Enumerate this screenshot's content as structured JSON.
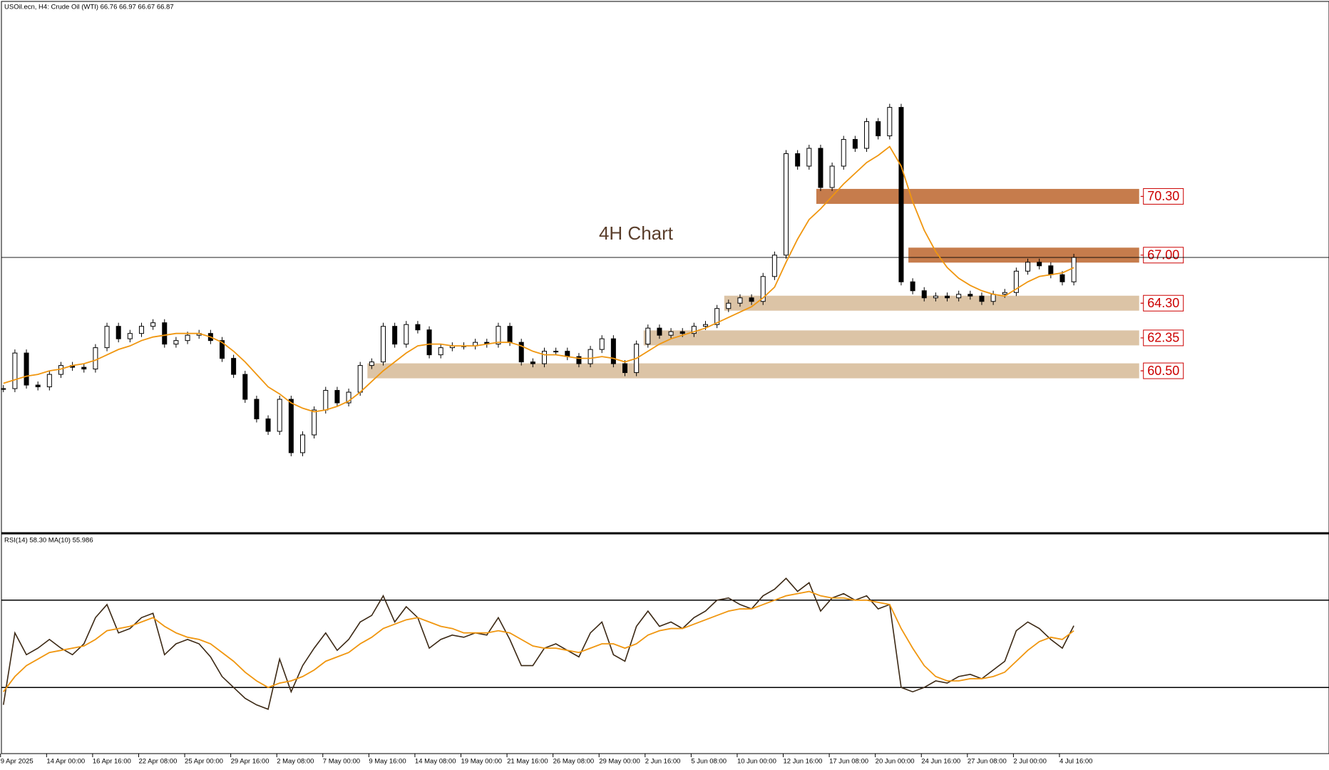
{
  "chart_data": [
    {
      "type": "candlestick",
      "title": "USOil.ecn, H4:  Crude Oil (WTI)  66.76 66.97 66.67 66.87",
      "annotation": "4H Chart",
      "ylim": [
        51.43,
        81.19
      ],
      "color_up": "#ffffff",
      "color_down": "#000000",
      "values": [
        59.5,
        61.5,
        59.7,
        59.6,
        60.3,
        60.8,
        60.7,
        60.6,
        61.8,
        63.0,
        62.3,
        62.6,
        63.0,
        63.2,
        62.0,
        62.2,
        62.5,
        62.6,
        62.2,
        61.2,
        60.3,
        58.9,
        57.8,
        57.1,
        58.9,
        55.9,
        56.9,
        58.3,
        59.4,
        58.7,
        59.3,
        60.8,
        61.0,
        63.0,
        62.0,
        63.1,
        62.8,
        61.4,
        61.8,
        61.9,
        61.9,
        62.1,
        62.0,
        63.0,
        62.1,
        61.0,
        60.9,
        61.6,
        61.6,
        61.3,
        60.9,
        61.7,
        62.3,
        60.9,
        60.4,
        62.0,
        62.9,
        62.5,
        62.7,
        62.6,
        63.0,
        63.1,
        64.0,
        64.3,
        64.6,
        64.4,
        65.8,
        67.0,
        72.7,
        72.0,
        73.0,
        70.8,
        72.0,
        73.5,
        73.0,
        74.5,
        73.7,
        75.3,
        65.5,
        65.0,
        64.6,
        64.7,
        64.6,
        64.8,
        64.7,
        64.4,
        64.8,
        64.9,
        66.1,
        66.6,
        66.4,
        65.9,
        65.5,
        66.87
      ],
      "moving_average": {
        "color": "#f0960f",
        "values": [
          59.8,
          60.0,
          60.2,
          60.3,
          60.5,
          60.6,
          60.8,
          60.9,
          61.1,
          61.4,
          61.7,
          61.9,
          62.2,
          62.4,
          62.5,
          62.6,
          62.6,
          62.6,
          62.4,
          62.1,
          61.6,
          61.0,
          60.3,
          59.6,
          59.2,
          58.7,
          58.4,
          58.2,
          58.3,
          58.5,
          58.8,
          59.3,
          59.9,
          60.5,
          61.0,
          61.5,
          61.9,
          62.0,
          62.0,
          61.9,
          61.9,
          61.9,
          62.0,
          62.1,
          62.1,
          61.9,
          61.6,
          61.4,
          61.4,
          61.3,
          61.2,
          61.2,
          61.3,
          61.2,
          61.0,
          61.2,
          61.6,
          62.0,
          62.3,
          62.5,
          62.7,
          62.9,
          63.2,
          63.5,
          63.8,
          64.1,
          64.6,
          65.2,
          66.6,
          67.9,
          69.0,
          69.6,
          70.3,
          71.0,
          71.6,
          72.2,
          72.6,
          73.1,
          72.0,
          70.0,
          68.4,
          67.2,
          66.3,
          65.7,
          65.3,
          65.0,
          64.8,
          64.7,
          65.1,
          65.5,
          65.8,
          65.9,
          66.0,
          66.3
        ]
      },
      "levels": [
        {
          "value": 70.3,
          "label": "70.30",
          "from": 71,
          "color": "#c67c4c"
        },
        {
          "value": 67.0,
          "label": "67.00",
          "from": 79,
          "color": "#c67c4c"
        },
        {
          "value": 64.3,
          "label": "64.30",
          "from": 63,
          "color": "#dcc4a6"
        },
        {
          "value": 62.35,
          "label": "62.35",
          "from": 56,
          "color": "#dcc4a6"
        },
        {
          "value": 60.5,
          "label": "60.50",
          "from": 32,
          "color": "#dcc4a6"
        }
      ],
      "label_color": "#cc0000"
    },
    {
      "type": "line",
      "title": "RSI(14) 58.30 MA(10) 55.986",
      "ylim": [
        0,
        100
      ],
      "levels": [
        30,
        70
      ],
      "categories": [
        "9 Apr 2025",
        null,
        null,
        null,
        "14 Apr 00:00",
        null,
        null,
        null,
        "16 Apr 16:00",
        null,
        null,
        null,
        "22 Apr 08:00",
        null,
        null,
        null,
        "25 Apr 00:00",
        null,
        null,
        null,
        "29 Apr 16:00",
        null,
        null,
        null,
        "2 May 08:00",
        null,
        null,
        null,
        "7 May 00:00",
        null,
        null,
        null,
        "9 May 16:00",
        null,
        null,
        null,
        "14 May 08:00",
        null,
        null,
        null,
        "19 May 00:00",
        null,
        null,
        null,
        "21 May 16:00",
        null,
        null,
        null,
        "26 May 08:00",
        null,
        null,
        null,
        "29 May 00:00",
        null,
        null,
        null,
        "2 Jun 16:00",
        null,
        null,
        null,
        "5 Jun 08:00",
        null,
        null,
        null,
        "10 Jun 00:00",
        null,
        null,
        null,
        "12 Jun 16:00",
        null,
        null,
        null,
        "17 Jun 08:00",
        null,
        null,
        null,
        "20 Jun 00:00",
        null,
        null,
        null,
        "24 Jun 16:00",
        null,
        null,
        null,
        "27 Jun 08:00",
        null,
        null,
        null,
        "2 Jul 00:00",
        null,
        null,
        null,
        "4 Jul 16:00",
        null
      ],
      "series": [
        {
          "color": "#3b2814",
          "values": [
            22,
            55,
            45,
            48,
            52,
            48,
            45,
            50,
            62,
            68,
            55,
            57,
            62,
            64,
            45,
            50,
            52,
            50,
            44,
            35,
            30,
            25,
            22,
            20,
            43,
            28,
            40,
            48,
            55,
            47,
            52,
            60,
            63,
            72,
            60,
            67,
            62,
            48,
            52,
            54,
            53,
            55,
            54,
            62,
            52,
            40,
            40,
            48,
            50,
            47,
            44,
            55,
            60,
            45,
            42,
            58,
            65,
            58,
            60,
            57,
            62,
            65,
            70,
            71,
            68,
            66,
            72,
            75,
            80,
            74,
            78,
            65,
            71,
            73,
            70,
            72,
            66,
            68,
            30,
            28,
            30,
            33,
            32,
            35,
            36,
            34,
            38,
            42,
            56,
            60,
            57,
            52,
            48,
            58.3
          ]
        },
        {
          "color": "#f0960f",
          "values": [
            28,
            35,
            40,
            43,
            46,
            47,
            48,
            49,
            52,
            56,
            57,
            58,
            60,
            62,
            58,
            55,
            53,
            52,
            50,
            46,
            42,
            37,
            33,
            30,
            32,
            33,
            35,
            38,
            42,
            44,
            46,
            50,
            53,
            57,
            59,
            61,
            62,
            60,
            58,
            57,
            55,
            55,
            55,
            56,
            55,
            52,
            49,
            48,
            48,
            47,
            46,
            48,
            50,
            50,
            48,
            50,
            54,
            56,
            57,
            57,
            59,
            61,
            63,
            65,
            66,
            66,
            68,
            70,
            72,
            73,
            74,
            72,
            71,
            71,
            70,
            70,
            69,
            68,
            57,
            48,
            40,
            35,
            33,
            33,
            34,
            34,
            35,
            37,
            42,
            47,
            51,
            53,
            52,
            55.986
          ]
        }
      ]
    }
  ]
}
